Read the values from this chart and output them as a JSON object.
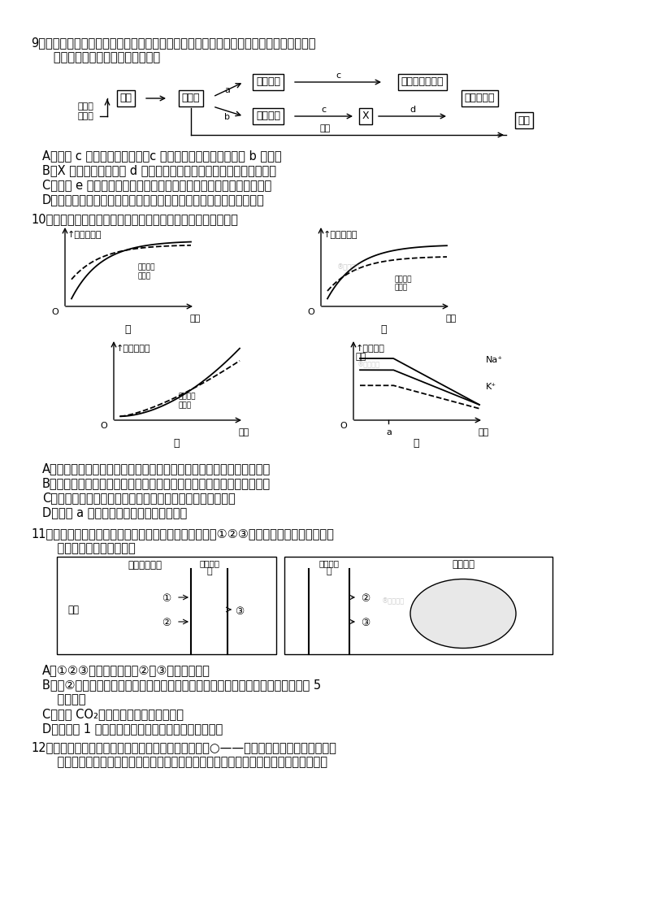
{
  "bg_color": "#ffffff",
  "q9_line1": "9．人体内环境稳态的维持依赖复杂的调节机制，如图为人体内体温调节和水平衡调节的部",
  "q9_line2": "   分过程示意图。以下分析正确的是",
  "q9_options": [
    "A．图中 c 代表促甲状腺激素，c 含量过高时会反馈抑制激素 b 的分泌",
    "B．X 代表甲状腺，激素 d 的主要靶器官除图示外还包括垂体和下丘脑",
    "C．图中 e 在下丘脑合成，人体血浆渗透压降低时会导致其分泌量增加",
    "D．炎热环境中，机体通过神经调节促进皮肤血管舒张使散热大于产热"
  ],
  "q10_line1": "10．下图是关于抗利尿激素调节的曲线图，下列叙述中正确的是",
  "q10_options": [
    "A．甲图表示食物过咸时，抗利尿激素分泌与细胞外液渗透压变化的关系",
    "B．乙图表示饮水过多时，抗利尿激素分泌与细胞外液渗透压变化的关系",
    "C．丙图表示细胞外液渗透压升高时，抗利尿激素分泌的变化",
    "D．丁图 a 点时注射的不可能是抗利尿激素"
  ],
  "q11_line1": "11．下图中甲、乙为人体内两种不同组织处的毛细血管，①②③表示某些化学物质。请据图",
  "q11_line2": "    判断下列选项不正确的是",
  "q11_options": [
    "A．①②③三种化学物质中②和③可以是葡萄糖",
    "B．若②为氨基酸，经吸收、运输，在组织细胞中的核糖体上合成组织蛋白共要穿过 5",
    "    层生物膜",
    "C．图中 CO₂浓度最高的部位是组织细胞",
    "D．人进食 1 小时后，毛细血管内的胰岛素含量会升高"
  ],
  "q12_line1": "12．如图甲表示反射弧中三个神经元及其联系，其中一○——表示从树突到胞体再到轴突及",
  "q12_line2": "    末梢（即一个完整的神经元模式）。图乙表示突触的显微结构模式图。下列关于图解的"
}
